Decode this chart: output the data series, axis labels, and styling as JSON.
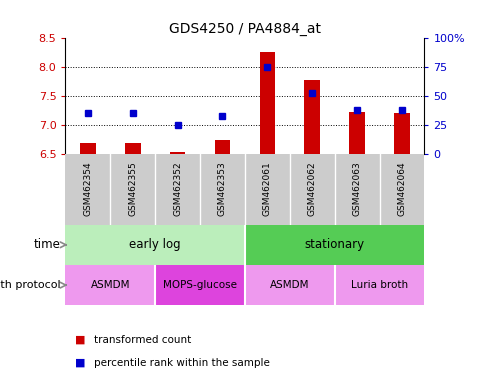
{
  "title": "GDS4250 / PA4884_at",
  "samples": [
    "GSM462354",
    "GSM462355",
    "GSM462352",
    "GSM462353",
    "GSM462061",
    "GSM462062",
    "GSM462063",
    "GSM462064"
  ],
  "transformed_counts": [
    6.68,
    6.69,
    6.52,
    6.73,
    8.27,
    7.78,
    7.23,
    7.2
  ],
  "percentile_ranks": [
    35,
    35,
    25,
    33,
    75,
    53,
    38,
    38
  ],
  "ylim_left": [
    6.5,
    8.5
  ],
  "ylim_right": [
    0,
    100
  ],
  "yticks_left": [
    6.5,
    7.0,
    7.5,
    8.0,
    8.5
  ],
  "yticks_right": [
    0,
    25,
    50,
    75,
    100
  ],
  "ytick_labels_right": [
    "0",
    "25",
    "50",
    "75",
    "100%"
  ],
  "bar_color": "#cc0000",
  "dot_color": "#0000cc",
  "bar_width": 0.35,
  "legend_bar_label": "transformed count",
  "legend_dot_label": "percentile rank within the sample",
  "time_row_label": "time",
  "protocol_row_label": "growth protocol",
  "left_axis_color": "#cc0000",
  "right_axis_color": "#0000cc",
  "background_plot": "#ffffff",
  "background_sample_row": "#cccccc",
  "time_light_green": "#bbeebb",
  "time_dark_green": "#55cc55",
  "protocol_light_purple": "#ee99ee",
  "protocol_dark_purple": "#dd44dd",
  "time_configs": [
    [
      0,
      3,
      "#bbeebb",
      "early log"
    ],
    [
      4,
      7,
      "#55cc55",
      "stationary"
    ]
  ],
  "protocol_configs": [
    [
      0,
      1,
      "#ee99ee",
      "ASMDM"
    ],
    [
      2,
      3,
      "#dd44dd",
      "MOPS-glucose"
    ],
    [
      4,
      5,
      "#ee99ee",
      "ASMDM"
    ],
    [
      6,
      7,
      "#ee99ee",
      "Luria broth"
    ]
  ]
}
